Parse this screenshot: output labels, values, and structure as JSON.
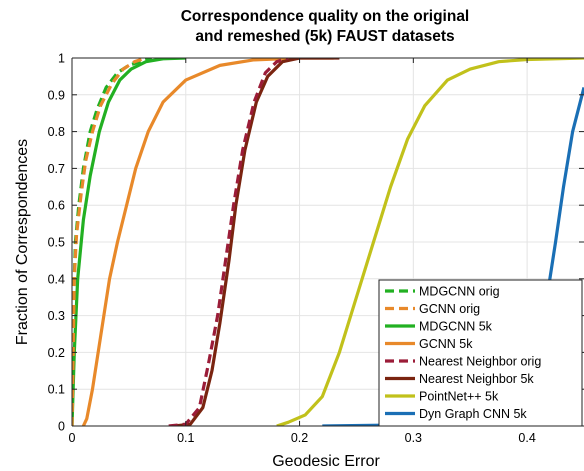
{
  "chart_data": {
    "type": "line",
    "title_lines": [
      "Correspondence quality on the original",
      "and remeshed (5k) FAUST datasets"
    ],
    "xlabel": "Geodesic Error",
    "ylabel": "Fraction of Correspondences",
    "xlim": [
      0,
      0.45
    ],
    "ylim": [
      0,
      1
    ],
    "xticks": [
      "0",
      "0.1",
      "0.2",
      "0.3",
      "0.4"
    ],
    "yticks": [
      "0",
      "0.1",
      "0.2",
      "0.3",
      "0.4",
      "0.5",
      "0.6",
      "0.7",
      "0.8",
      "0.9",
      "1"
    ],
    "grid": true,
    "legend_position": "bottom-right",
    "series": [
      {
        "name": "MDGCNN orig",
        "color": "#22b022",
        "dash": true,
        "points": [
          [
            0,
            0
          ],
          [
            0.001,
            0.3
          ],
          [
            0.003,
            0.5
          ],
          [
            0.006,
            0.6
          ],
          [
            0.01,
            0.7
          ],
          [
            0.016,
            0.8
          ],
          [
            0.022,
            0.86
          ],
          [
            0.03,
            0.92
          ],
          [
            0.04,
            0.96
          ],
          [
            0.05,
            0.98
          ],
          [
            0.06,
            0.99
          ],
          [
            0.07,
            1.0
          ]
        ]
      },
      {
        "name": "GCNN orig",
        "color": "#e8892a",
        "dash": true,
        "points": [
          [
            0,
            0
          ],
          [
            0.002,
            0.4
          ],
          [
            0.004,
            0.52
          ],
          [
            0.008,
            0.63
          ],
          [
            0.012,
            0.72
          ],
          [
            0.018,
            0.8
          ],
          [
            0.025,
            0.87
          ],
          [
            0.035,
            0.93
          ],
          [
            0.045,
            0.97
          ],
          [
            0.055,
            0.99
          ],
          [
            0.065,
            1.0
          ]
        ]
      },
      {
        "name": "MDGCNN 5k",
        "color": "#22b022",
        "dash": false,
        "points": [
          [
            0,
            0
          ],
          [
            0.002,
            0.2
          ],
          [
            0.005,
            0.4
          ],
          [
            0.01,
            0.56
          ],
          [
            0.016,
            0.68
          ],
          [
            0.024,
            0.8
          ],
          [
            0.032,
            0.88
          ],
          [
            0.042,
            0.94
          ],
          [
            0.052,
            0.97
          ],
          [
            0.065,
            0.99
          ],
          [
            0.08,
            0.998
          ],
          [
            0.1,
            1.0
          ]
        ]
      },
      {
        "name": "GCNN 5k",
        "color": "#e8892a",
        "dash": false,
        "points": [
          [
            0.01,
            0
          ],
          [
            0.013,
            0.02
          ],
          [
            0.018,
            0.1
          ],
          [
            0.025,
            0.24
          ],
          [
            0.033,
            0.4
          ],
          [
            0.04,
            0.5
          ],
          [
            0.048,
            0.6
          ],
          [
            0.056,
            0.7
          ],
          [
            0.067,
            0.8
          ],
          [
            0.08,
            0.88
          ],
          [
            0.1,
            0.94
          ],
          [
            0.13,
            0.98
          ],
          [
            0.16,
            0.995
          ],
          [
            0.2,
            1.0
          ],
          [
            0.23,
            1.0
          ]
        ]
      },
      {
        "name": "Nearest Neighbor orig",
        "color": "#9b1c38",
        "dash": true,
        "points": [
          [
            0.085,
            0
          ],
          [
            0.1,
            0.005
          ],
          [
            0.112,
            0.05
          ],
          [
            0.12,
            0.17
          ],
          [
            0.128,
            0.3
          ],
          [
            0.135,
            0.45
          ],
          [
            0.142,
            0.6
          ],
          [
            0.15,
            0.75
          ],
          [
            0.16,
            0.88
          ],
          [
            0.17,
            0.96
          ],
          [
            0.18,
            0.99
          ],
          [
            0.19,
            1.0
          ]
        ]
      },
      {
        "name": "Nearest Neighbor 5k",
        "color": "#7a2410",
        "dash": false,
        "points": [
          [
            0.09,
            0
          ],
          [
            0.104,
            0.005
          ],
          [
            0.115,
            0.05
          ],
          [
            0.123,
            0.15
          ],
          [
            0.13,
            0.28
          ],
          [
            0.138,
            0.45
          ],
          [
            0.144,
            0.6
          ],
          [
            0.152,
            0.75
          ],
          [
            0.162,
            0.88
          ],
          [
            0.172,
            0.95
          ],
          [
            0.185,
            0.99
          ],
          [
            0.2,
            1.0
          ],
          [
            0.235,
            1.0
          ]
        ]
      },
      {
        "name": "PointNet++ 5k",
        "color": "#c1c11b",
        "dash": false,
        "points": [
          [
            0.18,
            0
          ],
          [
            0.19,
            0.01
          ],
          [
            0.205,
            0.03
          ],
          [
            0.22,
            0.08
          ],
          [
            0.235,
            0.2
          ],
          [
            0.25,
            0.35
          ],
          [
            0.265,
            0.5
          ],
          [
            0.28,
            0.65
          ],
          [
            0.295,
            0.78
          ],
          [
            0.31,
            0.87
          ],
          [
            0.33,
            0.94
          ],
          [
            0.35,
            0.97
          ],
          [
            0.375,
            0.99
          ],
          [
            0.4,
            0.996
          ],
          [
            0.45,
            1.0
          ]
        ]
      },
      {
        "name": "Dyn Graph CNN 5k",
        "color": "#1a6fb5",
        "dash": false,
        "points": [
          [
            0.22,
            0
          ],
          [
            0.3,
            0.003
          ],
          [
            0.36,
            0.01
          ],
          [
            0.39,
            0.04
          ],
          [
            0.405,
            0.15
          ],
          [
            0.415,
            0.3
          ],
          [
            0.425,
            0.5
          ],
          [
            0.432,
            0.65
          ],
          [
            0.44,
            0.8
          ],
          [
            0.45,
            0.92
          ]
        ]
      }
    ]
  }
}
